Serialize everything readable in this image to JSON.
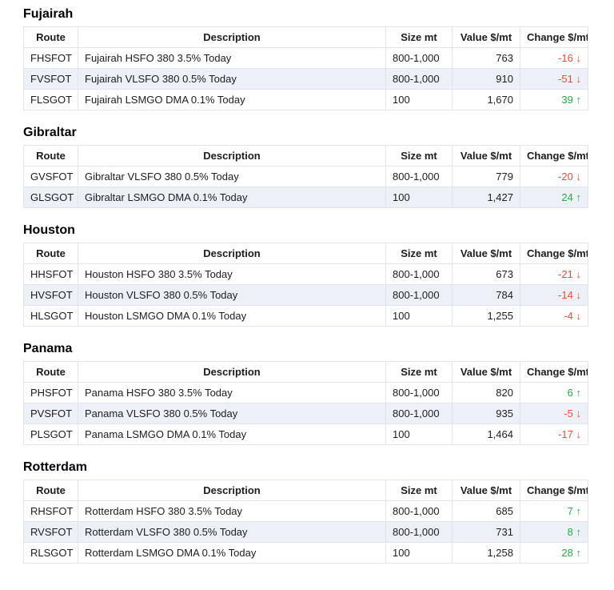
{
  "colors": {
    "negative": "#e74c3c",
    "positive": "#28a745",
    "row_stripe": "#edf1f7",
    "border": "#dfe4ee",
    "body_text": "#1d1d1f",
    "heading_text": "#000000"
  },
  "icons": {
    "up_arrow": "↑",
    "down_arrow": "↓"
  },
  "columns": [
    "Route",
    "Description",
    "Size mt",
    "Value $/mt",
    "Change $/mt"
  ],
  "sections": [
    {
      "title": "Fujairah",
      "rows": [
        {
          "route": "FHSFOT",
          "description": "Fujairah HSFO 380 3.5% Today",
          "size": "800-1,000",
          "value": "763",
          "change": "-16",
          "direction": "down"
        },
        {
          "route": "FVSFOT",
          "description": "Fujairah VLSFO 380 0.5% Today",
          "size": "800-1,000",
          "value": "910",
          "change": "-51",
          "direction": "down"
        },
        {
          "route": "FLSGOT",
          "description": "Fujairah LSMGO DMA 0.1% Today",
          "size": "100",
          "value": "1,670",
          "change": "39",
          "direction": "up"
        }
      ]
    },
    {
      "title": "Gibraltar",
      "rows": [
        {
          "route": "GVSFOT",
          "description": "Gibraltar VLSFO 380 0.5% Today",
          "size": "800-1,000",
          "value": "779",
          "change": "-20",
          "direction": "down"
        },
        {
          "route": "GLSGOT",
          "description": "Gibraltar LSMGO DMA 0.1% Today",
          "size": "100",
          "value": "1,427",
          "change": "24",
          "direction": "up"
        }
      ]
    },
    {
      "title": "Houston",
      "rows": [
        {
          "route": "HHSFOT",
          "description": "Houston HSFO 380 3.5% Today",
          "size": "800-1,000",
          "value": "673",
          "change": "-21",
          "direction": "down"
        },
        {
          "route": "HVSFOT",
          "description": "Houston VLSFO 380 0.5% Today",
          "size": "800-1,000",
          "value": "784",
          "change": "-14",
          "direction": "down"
        },
        {
          "route": "HLSGOT",
          "description": "Houston LSMGO DMA 0.1% Today",
          "size": "100",
          "value": "1,255",
          "change": "-4",
          "direction": "down"
        }
      ]
    },
    {
      "title": "Panama",
      "rows": [
        {
          "route": "PHSFOT",
          "description": "Panama HSFO 380 3.5% Today",
          "size": "800-1,000",
          "value": "820",
          "change": "6",
          "direction": "up"
        },
        {
          "route": "PVSFOT",
          "description": "Panama VLSFO 380 0.5% Today",
          "size": "800-1,000",
          "value": "935",
          "change": "-5",
          "direction": "down"
        },
        {
          "route": "PLSGOT",
          "description": "Panama LSMGO DMA 0.1% Today",
          "size": "100",
          "value": "1,464",
          "change": "-17",
          "direction": "down"
        }
      ]
    },
    {
      "title": "Rotterdam",
      "rows": [
        {
          "route": "RHSFOT",
          "description": "Rotterdam HSFO 380 3.5% Today",
          "size": "800-1,000",
          "value": "685",
          "change": "7",
          "direction": "up"
        },
        {
          "route": "RVSFOT",
          "description": "Rotterdam VLSFO 380 0.5% Today",
          "size": "800-1,000",
          "value": "731",
          "change": "8",
          "direction": "up"
        },
        {
          "route": "RLSGOT",
          "description": "Rotterdam LSMGO DMA 0.1% Today",
          "size": "100",
          "value": "1,258",
          "change": "28",
          "direction": "up"
        }
      ]
    }
  ]
}
